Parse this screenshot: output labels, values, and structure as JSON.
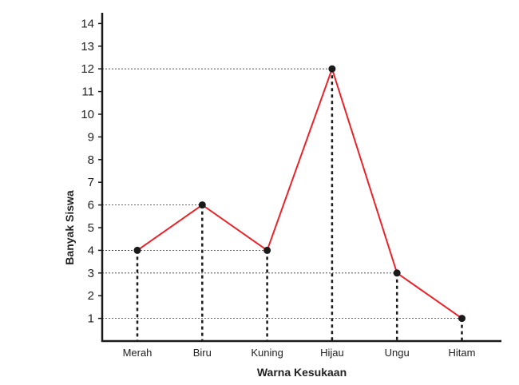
{
  "chart_data": {
    "type": "line",
    "title": "",
    "xlabel": "Warna Kesukaan",
    "ylabel": "Banyak Siswa",
    "categories": [
      "Merah",
      "Biru",
      "Kuning",
      "Hijau",
      "Ungu",
      "Hitam"
    ],
    "series": [
      {
        "values": [
          4,
          6,
          4,
          12,
          3,
          1
        ]
      }
    ],
    "y_ticks": [
      1,
      2,
      3,
      4,
      5,
      6,
      7,
      8,
      9,
      10,
      11,
      12,
      13,
      14
    ],
    "ylim": [
      0,
      14
    ],
    "grid": false,
    "guide_lines": true,
    "colors": {
      "line": "#e8242a",
      "marker": "#1a1a1a",
      "axis": "#1a1a1a",
      "guide": "#333333"
    }
  }
}
